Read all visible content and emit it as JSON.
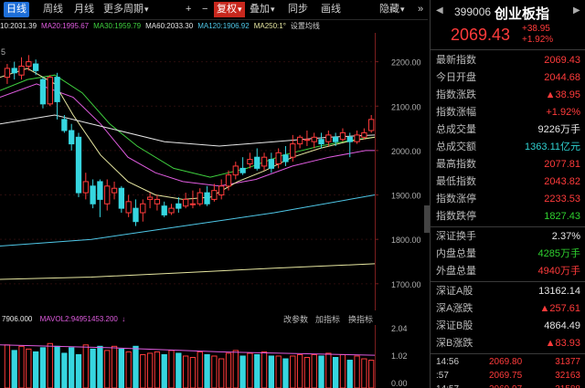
{
  "toolbar": {
    "tabs": [
      "日线",
      "周线",
      "月线",
      "更多周期"
    ],
    "plus": "+",
    "minus": "−",
    "fuquan": "复权",
    "diejia": "叠加",
    "tongbu": "同步",
    "huatu": "画线",
    "yincang": "隐藏",
    "more": "»"
  },
  "ma_legend": [
    {
      "text": "10:2031.39",
      "color": "#e6e6e6"
    },
    {
      "text": "MA20:1995.67",
      "color": "#e05ce0"
    },
    {
      "text": "MA30:1959.79",
      "color": "#3fd03f"
    },
    {
      "text": "MA60:2033.30",
      "color": "#e6e6e6"
    },
    {
      "text": "MA120:1906.92",
      "color": "#4fc8e8"
    },
    {
      "text": "MA250:1°",
      "color": "#e6e6a0"
    },
    {
      "text": "设置均线",
      "color": "#cfcfcf"
    }
  ],
  "price_axis": [
    "2200.00",
    "2100.00",
    "2000.00",
    "1900.00",
    "1800.00",
    "1700.00"
  ],
  "left_edge_label": "5",
  "vol_legend": {
    "a": "7906.000",
    "b": "MAVOL2:94951453.200",
    "buttons": [
      "改参数",
      "加指标",
      "换指标"
    ]
  },
  "vol_axis": [
    "2.04",
    "1.02",
    "0.00"
  ],
  "panel": {
    "code": "399006",
    "name": "创业板指",
    "price": "2069.43",
    "change": "+38.95",
    "change_pct": "+1.92%",
    "stats": [
      {
        "label": "最新指数",
        "value": "2069.43",
        "cls": "red"
      },
      {
        "label": "今日开盘",
        "value": "2044.68",
        "cls": "red"
      },
      {
        "label": "指数涨跌",
        "value": "▲38.95",
        "cls": "red"
      },
      {
        "label": "指数涨幅",
        "value": "+1.92%",
        "cls": "red"
      },
      {
        "label": "总成交量",
        "value": "9226万手",
        "cls": "wht"
      },
      {
        "label": "总成交额",
        "value": "1363.11亿元",
        "cls": "cyn"
      },
      {
        "label": "最高指数",
        "value": "2077.81",
        "cls": "red"
      },
      {
        "label": "最低指数",
        "value": "2043.82",
        "cls": "red"
      },
      {
        "label": "指数涨停",
        "value": "2233.53",
        "cls": "red"
      },
      {
        "label": "指数跌停",
        "value": "1827.43",
        "cls": "grn"
      }
    ],
    "stats2": [
      {
        "label": "深证换手",
        "value": "2.37%",
        "cls": "wht"
      },
      {
        "label": "内盘总量",
        "value": "4285万手",
        "cls": "grn"
      },
      {
        "label": "外盘总量",
        "value": "4940万手",
        "cls": "red"
      }
    ],
    "stats3": [
      {
        "label": "深证A股",
        "value": "13162.14",
        "cls": "wht"
      },
      {
        "label": "深A涨跌",
        "value": "▲257.61",
        "cls": "red"
      },
      {
        "label": "深证B股",
        "value": "4864.49",
        "cls": "wht"
      },
      {
        "label": "深B涨跌",
        "value": "▲83.93",
        "cls": "red"
      }
    ],
    "ticks": [
      {
        "time": "14:56",
        "price": "2069.80",
        "vol": "31377"
      },
      {
        "time": ":57",
        "price": "2069.75",
        "vol": "32163"
      },
      {
        "time": "14:57",
        "price": "2069.97",
        "vol": "31588"
      }
    ]
  },
  "candles": [
    {
      "o": 2165,
      "c": 2185,
      "h": 2195,
      "l": 2150
    },
    {
      "o": 2185,
      "c": 2175,
      "h": 2200,
      "l": 2160
    },
    {
      "o": 2170,
      "c": 2190,
      "h": 2210,
      "l": 2160
    },
    {
      "o": 2190,
      "c": 2200,
      "h": 2215,
      "l": 2180
    },
    {
      "o": 2195,
      "c": 2180,
      "h": 2205,
      "l": 2170
    },
    {
      "o": 2160,
      "c": 2105,
      "h": 2165,
      "l": 2095
    },
    {
      "o": 2105,
      "c": 2165,
      "h": 2170,
      "l": 2100
    },
    {
      "o": 2165,
      "c": 2110,
      "h": 2175,
      "l": 2070
    },
    {
      "o": 2070,
      "c": 2045,
      "h": 2080,
      "l": 2040
    },
    {
      "o": 2045,
      "c": 2015,
      "h": 2060,
      "l": 2000
    },
    {
      "o": 2030,
      "c": 1905,
      "h": 2040,
      "l": 1895
    },
    {
      "o": 1905,
      "c": 1930,
      "h": 1950,
      "l": 1890
    },
    {
      "o": 1920,
      "c": 1880,
      "h": 1935,
      "l": 1870
    },
    {
      "o": 1930,
      "c": 1890,
      "h": 1935,
      "l": 1850
    },
    {
      "o": 1880,
      "c": 1920,
      "h": 1935,
      "l": 1865
    },
    {
      "o": 1905,
      "c": 1915,
      "h": 1930,
      "l": 1890
    },
    {
      "o": 1915,
      "c": 1870,
      "h": 1920,
      "l": 1860
    },
    {
      "o": 1860,
      "c": 1885,
      "h": 1900,
      "l": 1850
    },
    {
      "o": 1870,
      "c": 1840,
      "h": 1890,
      "l": 1830
    },
    {
      "o": 1860,
      "c": 1880,
      "h": 1890,
      "l": 1840
    },
    {
      "o": 1890,
      "c": 1895,
      "h": 1905,
      "l": 1870
    },
    {
      "o": 1880,
      "c": 1890,
      "h": 1900,
      "l": 1865
    },
    {
      "o": 1875,
      "c": 1855,
      "h": 1885,
      "l": 1850
    },
    {
      "o": 1860,
      "c": 1870,
      "h": 1880,
      "l": 1855
    },
    {
      "o": 1880,
      "c": 1870,
      "h": 1895,
      "l": 1860
    },
    {
      "o": 1875,
      "c": 1890,
      "h": 1905,
      "l": 1870
    },
    {
      "o": 1880,
      "c": 1880,
      "h": 1910,
      "l": 1870
    },
    {
      "o": 1880,
      "c": 1905,
      "h": 1915,
      "l": 1875
    },
    {
      "o": 1905,
      "c": 1880,
      "h": 1920,
      "l": 1875
    },
    {
      "o": 1890,
      "c": 1910,
      "h": 1925,
      "l": 1885
    },
    {
      "o": 1900,
      "c": 1920,
      "h": 1935,
      "l": 1890
    },
    {
      "o": 1920,
      "c": 1945,
      "h": 1955,
      "l": 1910
    },
    {
      "o": 1945,
      "c": 1965,
      "h": 1975,
      "l": 1935
    },
    {
      "o": 1960,
      "c": 1950,
      "h": 1985,
      "l": 1945
    },
    {
      "o": 1970,
      "c": 1980,
      "h": 1995,
      "l": 1960
    },
    {
      "o": 1985,
      "c": 1960,
      "h": 2005,
      "l": 1955
    },
    {
      "o": 1965,
      "c": 1985,
      "h": 1995,
      "l": 1955
    },
    {
      "o": 1980,
      "c": 1960,
      "h": 1995,
      "l": 1950
    },
    {
      "o": 1970,
      "c": 1995,
      "h": 2005,
      "l": 1960
    },
    {
      "o": 1990,
      "c": 1975,
      "h": 2010,
      "l": 1965
    },
    {
      "o": 1985,
      "c": 2015,
      "h": 2035,
      "l": 1975
    },
    {
      "o": 2015,
      "c": 2030,
      "h": 2035,
      "l": 2005
    },
    {
      "o": 2025,
      "c": 2025,
      "h": 2045,
      "l": 2010
    },
    {
      "o": 2020,
      "c": 2030,
      "h": 2040,
      "l": 2005
    },
    {
      "o": 2025,
      "c": 2015,
      "h": 2040,
      "l": 2005
    },
    {
      "o": 2020,
      "c": 2035,
      "h": 2045,
      "l": 2010
    },
    {
      "o": 2030,
      "c": 2020,
      "h": 2040,
      "l": 2010
    },
    {
      "o": 2025,
      "c": 2040,
      "h": 2050,
      "l": 2020
    },
    {
      "o": 2030,
      "c": 2020,
      "h": 2040,
      "l": 1985
    },
    {
      "o": 2020,
      "c": 2035,
      "h": 2045,
      "l": 2015
    },
    {
      "o": 2030,
      "c": 2040,
      "h": 2050,
      "l": 2025
    },
    {
      "o": 2045,
      "c": 2070,
      "h": 2080,
      "l": 2040
    }
  ],
  "volumes": [
    1.55,
    1.35,
    1.5,
    1.4,
    1.3,
    1.45,
    1.6,
    1.5,
    1.25,
    1.45,
    1.2,
    1.55,
    1.4,
    1.5,
    1.35,
    1.5,
    1.4,
    1.3,
    1.5,
    1.2,
    1.25,
    1.3,
    1.2,
    1.35,
    1.25,
    1.15,
    1.1,
    1.3,
    1.2,
    1.15,
    1.05,
    1.25,
    1.35,
    1.15,
    1.25,
    1.2,
    1.3,
    1.15,
    1.15,
    1.05,
    1.15,
    1.2,
    1.1,
    1.2,
    1.15,
    1.25,
    1.1,
    1.2,
    1.0,
    1.15,
    1.05,
    1.0
  ]
}
